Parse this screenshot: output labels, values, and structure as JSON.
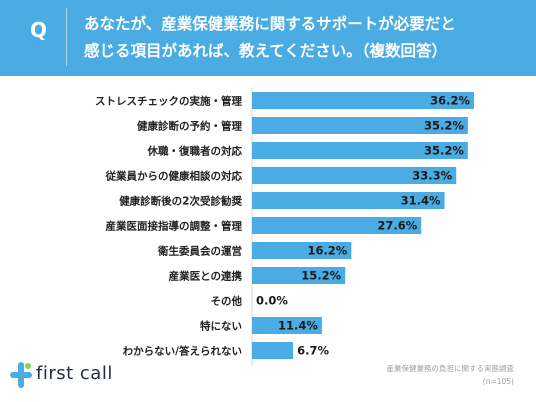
{
  "header": {
    "badge": "Q",
    "question_line1": "あなたが、産業保健業務に関するサポートが必要だと",
    "question_line2": "感じる項目があれば、教えてください。（複数回答）",
    "background_color": "#4aace3"
  },
  "chart_data": {
    "type": "bar",
    "orientation": "horizontal",
    "categories": [
      "ストレスチェックの実施・管理",
      "健康診断の予約・管理",
      "休職・復職者の対応",
      "従業員からの健康相談の対応",
      "健康診断後の2次受診勧奨",
      "産業医面接指導の調整・管理",
      "衛生委員会の運営",
      "産業医との連携",
      "その他",
      "特にない",
      "わからない/答えられない"
    ],
    "values": [
      36.2,
      35.2,
      35.2,
      33.3,
      31.4,
      27.6,
      16.2,
      15.2,
      0.0,
      11.4,
      6.7
    ],
    "value_labels": [
      "36.2%",
      "35.2%",
      "35.2%",
      "33.3%",
      "31.4%",
      "27.6%",
      "16.2%",
      "15.2%",
      "0.0%",
      "11.4%",
      "6.7%"
    ],
    "xlim": [
      0,
      36.2
    ],
    "bar_color": "#4aace3",
    "grid": false,
    "legend": false
  },
  "footer": {
    "logo_text": "first call",
    "source_line1": "産業保健業務の負担に関する実態調査",
    "source_line2": "(n=105)"
  }
}
